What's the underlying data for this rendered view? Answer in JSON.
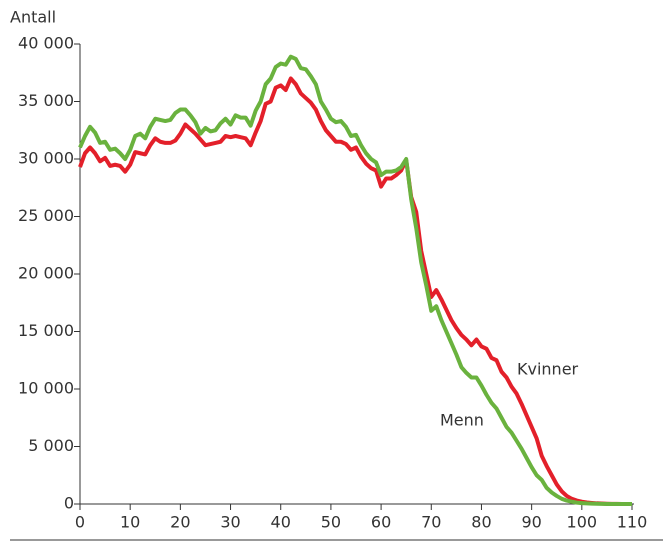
{
  "chart_data": {
    "type": "line",
    "ylabel": "Antall",
    "x": [
      0,
      1,
      2,
      3,
      4,
      5,
      6,
      7,
      8,
      9,
      10,
      11,
      12,
      13,
      14,
      15,
      16,
      17,
      18,
      19,
      20,
      21,
      22,
      23,
      24,
      25,
      26,
      27,
      28,
      29,
      30,
      31,
      32,
      33,
      34,
      35,
      36,
      37,
      38,
      39,
      40,
      41,
      42,
      43,
      44,
      45,
      46,
      47,
      48,
      49,
      50,
      51,
      52,
      53,
      54,
      55,
      56,
      57,
      58,
      59,
      60,
      61,
      62,
      63,
      64,
      65,
      66,
      67,
      68,
      69,
      70,
      71,
      72,
      73,
      74,
      75,
      76,
      77,
      78,
      79,
      80,
      81,
      82,
      83,
      84,
      85,
      86,
      87,
      88,
      89,
      90,
      91,
      92,
      93,
      94,
      95,
      96,
      97,
      98,
      99,
      100,
      101,
      102,
      103,
      104,
      105,
      106,
      107,
      108,
      109,
      110
    ],
    "series": [
      {
        "name": "Kvinner",
        "color": "#e3202a",
        "values": [
          29300,
          30500,
          31000,
          30500,
          29800,
          30100,
          29400,
          29500,
          29400,
          28900,
          29500,
          30600,
          30500,
          30400,
          31200,
          31800,
          31500,
          31400,
          31400,
          31600,
          32200,
          33000,
          32600,
          32200,
          31700,
          31200,
          31300,
          31400,
          31500,
          32000,
          31900,
          32000,
          31900,
          31800,
          31200,
          32300,
          33300,
          34800,
          35000,
          36200,
          36400,
          36000,
          37000,
          36500,
          35700,
          35300,
          34900,
          34300,
          33300,
          32500,
          32000,
          31500,
          31500,
          31300,
          30800,
          31000,
          30200,
          29600,
          29200,
          29000,
          27600,
          28300,
          28300,
          28600,
          29000,
          29900,
          26700,
          25400,
          22000,
          20000,
          18000,
          18600,
          17800,
          16900,
          16000,
          15300,
          14700,
          14300,
          13800,
          14300,
          13700,
          13500,
          12700,
          12500,
          11500,
          11000,
          10200,
          9600,
          8700,
          7700,
          6700,
          5700,
          4200,
          3300,
          2500,
          1700,
          1100,
          700,
          450,
          300,
          200,
          130,
          90,
          60,
          40,
          25,
          15,
          10,
          5,
          3,
          2
        ]
      },
      {
        "name": "Menn",
        "color": "#6ab23e",
        "values": [
          31000,
          32000,
          32800,
          32300,
          31400,
          31500,
          30800,
          30900,
          30500,
          30000,
          30800,
          32000,
          32200,
          31800,
          32800,
          33500,
          33400,
          33300,
          33400,
          34000,
          34300,
          34300,
          33800,
          33200,
          32200,
          32700,
          32400,
          32500,
          33100,
          33500,
          33000,
          33800,
          33600,
          33600,
          32900,
          34200,
          35000,
          36500,
          37000,
          38000,
          38300,
          38200,
          38900,
          38700,
          37900,
          37800,
          37200,
          36500,
          35000,
          34300,
          33500,
          33200,
          33300,
          32800,
          32000,
          32100,
          31200,
          30500,
          30000,
          29700,
          28600,
          28900,
          28900,
          29000,
          29300,
          30000,
          26500,
          24000,
          21000,
          19000,
          16800,
          17200,
          16000,
          15000,
          14000,
          13000,
          11900,
          11400,
          11000,
          11000,
          10300,
          9500,
          8800,
          8300,
          7500,
          6700,
          6200,
          5500,
          4800,
          4000,
          3200,
          2500,
          2100,
          1400,
          1000,
          700,
          450,
          300,
          200,
          120,
          80,
          50,
          30,
          20,
          10,
          5,
          3,
          2,
          1,
          0,
          0
        ]
      }
    ],
    "annotations": [
      {
        "text": "Kvinner",
        "series": 0
      },
      {
        "text": "Menn",
        "series": 1
      }
    ],
    "xlim": [
      0,
      110
    ],
    "xticks": [
      0,
      10,
      20,
      30,
      40,
      50,
      60,
      70,
      80,
      90,
      100,
      110
    ],
    "ylim": [
      0,
      40000
    ],
    "yticks": [
      0,
      {
        "value": 5000,
        "label": "5 000"
      },
      {
        "value": 10000,
        "label": "10 000"
      },
      {
        "value": 15000,
        "label": "15 000"
      },
      {
        "value": 20000,
        "label": "20 000"
      },
      {
        "value": 25000,
        "label": "25 000"
      },
      {
        "value": 30000,
        "label": "30 000"
      },
      {
        "value": 35000,
        "label": "35 000"
      },
      {
        "value": 40000,
        "label": "40 000"
      }
    ]
  }
}
